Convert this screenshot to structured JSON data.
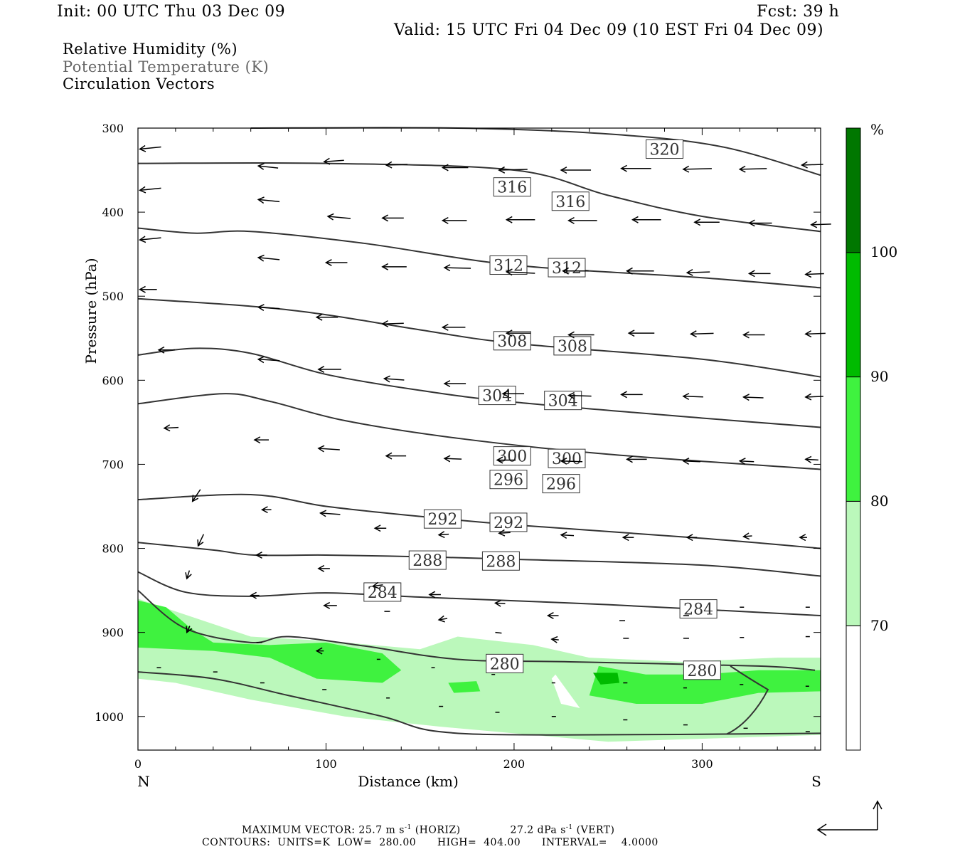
{
  "header": {
    "init": "Init: 00 UTC Thu 03 Dec 09",
    "fcst": "Fcst:   39 h",
    "valid": "Valid: 15 UTC Fri 04 Dec 09 (10 EST Fri 04 Dec 09)"
  },
  "fields": [
    {
      "label": "Relative Humidity (%)",
      "color": "#000000"
    },
    {
      "label": "Potential Temperature (K)",
      "color": "#666666"
    },
    {
      "label": "Circulation Vectors",
      "color": "#000000"
    }
  ],
  "chart_data": {
    "type": "cross-section",
    "xlabel": "Distance (km)",
    "ylabel": "Pressure (hPa)",
    "xlim": [
      0,
      363
    ],
    "ylim": [
      300,
      1040
    ],
    "y_scale": "linear, inverted",
    "x_ticks": [
      0,
      100,
      200,
      300
    ],
    "y_ticks": [
      300,
      400,
      500,
      600,
      700,
      800,
      900,
      1000
    ],
    "left_end_label": "N",
    "right_end_label": "S",
    "theta_contours": [
      {
        "level": 320,
        "points": [
          [
            60,
            300
          ],
          [
            170,
            300
          ],
          [
            250,
            307
          ],
          [
            310,
            322
          ],
          [
            363,
            356
          ]
        ],
        "labels": [
          [
            280,
            325
          ]
        ]
      },
      {
        "level": 316,
        "points": [
          [
            0,
            342
          ],
          [
            100,
            342
          ],
          [
            200,
            350
          ],
          [
            250,
            380
          ],
          [
            300,
            405
          ],
          [
            363,
            423
          ]
        ],
        "labels": [
          [
            199,
            370
          ],
          [
            230,
            387
          ]
        ]
      },
      {
        "level": 312,
        "points": [
          [
            0,
            419
          ],
          [
            30,
            425
          ],
          [
            60,
            423
          ],
          [
            120,
            437
          ],
          [
            200,
            463
          ],
          [
            300,
            478
          ],
          [
            363,
            490
          ]
        ],
        "labels": [
          [
            197,
            463
          ],
          [
            228,
            466
          ]
        ]
      },
      {
        "level": 308,
        "points": [
          [
            0,
            503
          ],
          [
            60,
            512
          ],
          [
            100,
            522
          ],
          [
            150,
            540
          ],
          [
            200,
            556
          ],
          [
            300,
            575
          ],
          [
            363,
            596
          ]
        ],
        "labels": [
          [
            199,
            553
          ],
          [
            231,
            559
          ]
        ]
      },
      {
        "level": 304,
        "points": [
          [
            0,
            570
          ],
          [
            30,
            562
          ],
          [
            60,
            568
          ],
          [
            100,
            593
          ],
          [
            150,
            612
          ],
          [
            200,
            626
          ],
          [
            300,
            645
          ],
          [
            363,
            656
          ]
        ],
        "labels": [
          [
            191,
            618
          ],
          [
            226,
            624
          ]
        ]
      },
      {
        "level": 300,
        "points": [
          [
            0,
            628
          ],
          [
            45,
            616
          ],
          [
            70,
            625
          ],
          [
            110,
            648
          ],
          [
            170,
            669
          ],
          [
            250,
            688
          ],
          [
            363,
            706
          ]
        ],
        "labels": [
          [
            199,
            690
          ],
          [
            228,
            693
          ]
        ]
      },
      {
        "level": 296,
        "points": [
          [
            0,
            742
          ],
          [
            60,
            736
          ],
          [
            100,
            750
          ],
          [
            150,
            762
          ],
          [
            200,
            772
          ],
          [
            300,
            788
          ],
          [
            363,
            800
          ]
        ],
        "labels": [
          [
            197,
            718
          ],
          [
            225,
            723
          ]
        ]
      },
      {
        "level": 292,
        "points": [
          [
            0,
            793
          ],
          [
            40,
            802
          ],
          [
            62,
            808
          ],
          [
            100,
            808
          ],
          [
            150,
            810
          ],
          [
            200,
            813
          ],
          [
            300,
            820
          ],
          [
            363,
            833
          ]
        ],
        "labels": [
          [
            162,
            765
          ],
          [
            197,
            769
          ]
        ]
      },
      {
        "level": 288,
        "points": [
          [
            0,
            828
          ],
          [
            25,
            852
          ],
          [
            60,
            857
          ],
          [
            100,
            853
          ],
          [
            150,
            858
          ],
          [
            250,
            867
          ],
          [
            363,
            880
          ]
        ],
        "labels": [
          [
            154,
            814
          ],
          [
            193,
            815
          ]
        ]
      },
      {
        "level": 284,
        "points": [
          [
            0,
            850
          ],
          [
            25,
            895
          ],
          [
            60,
            912
          ],
          [
            80,
            905
          ],
          [
            120,
            916
          ],
          [
            170,
            932
          ],
          [
            230,
            935
          ],
          [
            330,
            940
          ],
          [
            360,
            945
          ]
        ],
        "labels": [
          [
            130,
            852
          ],
          [
            298,
            872
          ]
        ]
      },
      {
        "level": 280,
        "points": [
          [
            0,
            947
          ],
          [
            40,
            955
          ],
          [
            80,
            975
          ],
          [
            130,
            1000
          ],
          [
            160,
            1018
          ],
          [
            220,
            1022
          ],
          [
            363,
            1020
          ]
        ],
        "labels": [
          [
            195,
            937
          ],
          [
            300,
            945
          ]
        ]
      }
    ],
    "rh_levels": [
      70,
      80,
      90,
      100
    ],
    "rh_colors": [
      "#ffffff",
      "#bbf8bb",
      "#3ff23f",
      "#00bb00",
      "#007700"
    ],
    "colorbar_unit": "%",
    "circulation_vectors": [
      [
        1,
        325,
        30,
        3
      ],
      [
        64,
        345,
        28,
        -3
      ],
      [
        99,
        340,
        28,
        2
      ],
      [
        132,
        344,
        30,
        1
      ],
      [
        162,
        347,
        36,
        0
      ],
      [
        192,
        350,
        40,
        1
      ],
      [
        225,
        350,
        42,
        0
      ],
      [
        257,
        348,
        42,
        0
      ],
      [
        290,
        349,
        40,
        1
      ],
      [
        320,
        349,
        38,
        1
      ],
      [
        353,
        344,
        30,
        1
      ],
      [
        1,
        374,
        30,
        3
      ],
      [
        64,
        385,
        30,
        -3
      ],
      [
        101,
        405,
        32,
        -3
      ],
      [
        130,
        407,
        30,
        0
      ],
      [
        162,
        410,
        34,
        0
      ],
      [
        196,
        409,
        40,
        0
      ],
      [
        229,
        410,
        40,
        0
      ],
      [
        263,
        409,
        40,
        0
      ],
      [
        296,
        412,
        35,
        0
      ],
      [
        325,
        413,
        32,
        0
      ],
      [
        358,
        415,
        28,
        1
      ],
      [
        1,
        433,
        30,
        3
      ],
      [
        64,
        454,
        30,
        -3
      ],
      [
        100,
        460,
        30,
        0
      ],
      [
        130,
        465,
        34,
        0
      ],
      [
        163,
        466,
        37,
        -1
      ],
      [
        196,
        471,
        40,
        -2
      ],
      [
        226,
        470,
        36,
        0
      ],
      [
        260,
        470,
        38,
        0
      ],
      [
        292,
        472,
        32,
        1
      ],
      [
        325,
        473,
        30,
        0
      ],
      [
        355,
        474,
        26,
        1
      ],
      [
        1,
        492,
        24,
        0
      ],
      [
        64,
        513,
        30,
        -2
      ],
      [
        95,
        525,
        30,
        0
      ],
      [
        130,
        533,
        30,
        1
      ],
      [
        162,
        537,
        32,
        0
      ],
      [
        196,
        544,
        34,
        0
      ],
      [
        229,
        546,
        36,
        0
      ],
      [
        261,
        544,
        36,
        0
      ],
      [
        294,
        545,
        32,
        1
      ],
      [
        322,
        546,
        30,
        0
      ],
      [
        355,
        545,
        28,
        1
      ],
      [
        11,
        564,
        23,
        0
      ],
      [
        64,
        575,
        30,
        -2
      ],
      [
        96,
        587,
        32,
        0
      ],
      [
        131,
        598,
        28,
        -2
      ],
      [
        163,
        604,
        30,
        0
      ],
      [
        194,
        616,
        30,
        0
      ],
      [
        229,
        618,
        32,
        -1
      ],
      [
        257,
        617,
        30,
        0
      ],
      [
        290,
        619,
        28,
        -1
      ],
      [
        322,
        620,
        28,
        -1
      ],
      [
        355,
        620,
        25,
        1
      ],
      [
        14,
        657,
        20,
        1
      ],
      [
        62,
        671,
        20,
        0
      ],
      [
        96,
        681,
        30,
        -2
      ],
      [
        132,
        690,
        28,
        0
      ],
      [
        163,
        693,
        24,
        -1
      ],
      [
        191,
        695,
        26,
        0
      ],
      [
        225,
        696,
        30,
        -1
      ],
      [
        260,
        694,
        28,
        0
      ],
      [
        290,
        696,
        24,
        -1
      ],
      [
        320,
        696,
        20,
        -1
      ],
      [
        355,
        694,
        18,
        -1
      ],
      [
        29,
        744,
        20,
        30
      ],
      [
        66,
        754,
        13,
        0
      ],
      [
        97,
        758,
        28,
        -2
      ],
      [
        126,
        776,
        16,
        0
      ],
      [
        160,
        784,
        14,
        1
      ],
      [
        192,
        782,
        16,
        1
      ],
      [
        225,
        784,
        18,
        -1
      ],
      [
        258,
        787,
        15,
        0
      ],
      [
        292,
        787,
        14,
        0
      ],
      [
        322,
        786,
        12,
        1
      ],
      [
        352,
        787,
        10,
        0
      ],
      [
        32,
        797,
        18,
        38
      ],
      [
        63,
        808,
        15,
        0
      ],
      [
        96,
        824,
        16,
        0
      ],
      [
        125,
        845,
        14,
        2
      ],
      [
        155,
        855,
        16,
        0
      ],
      [
        190,
        865,
        14,
        -1
      ],
      [
        218,
        880,
        15,
        0
      ],
      [
        256,
        886,
        8,
        0
      ],
      [
        290,
        880,
        8,
        0
      ],
      [
        320,
        870,
        6,
        0
      ],
      [
        355,
        870,
        6,
        0
      ],
      [
        26,
        836,
        12,
        38
      ],
      [
        60,
        856,
        12,
        0
      ],
      [
        99,
        868,
        18,
        0
      ],
      [
        131,
        875,
        8,
        0
      ],
      [
        160,
        885,
        12,
        2
      ],
      [
        190,
        900,
        9,
        -1
      ],
      [
        220,
        908,
        10,
        -1
      ],
      [
        258,
        907,
        8,
        0
      ],
      [
        290,
        907,
        8,
        0
      ],
      [
        320,
        906,
        6,
        0
      ],
      [
        355,
        905,
        6,
        0
      ],
      [
        26,
        900,
        10,
        22
      ],
      [
        63,
        912,
        8,
        0
      ],
      [
        95,
        922,
        10,
        0
      ],
      [
        127,
        932,
        5,
        0
      ],
      [
        156,
        942,
        5,
        0
      ],
      [
        188,
        950,
        5,
        0
      ],
      [
        220,
        960,
        5,
        0
      ],
      [
        258,
        960,
        6,
        0
      ],
      [
        290,
        966,
        5,
        0
      ],
      [
        320,
        962,
        5,
        0
      ],
      [
        355,
        964,
        5,
        0
      ],
      [
        10,
        942,
        6,
        0
      ],
      [
        40,
        947,
        6,
        0
      ],
      [
        65,
        960,
        6,
        0
      ],
      [
        98,
        968,
        6,
        0
      ],
      [
        132,
        978,
        5,
        0
      ],
      [
        160,
        988,
        6,
        0
      ],
      [
        190,
        995,
        6,
        0
      ],
      [
        220,
        1000,
        6,
        0
      ],
      [
        258,
        1004,
        6,
        0
      ],
      [
        290,
        1010,
        6,
        0
      ],
      [
        322,
        1014,
        6,
        0
      ],
      [
        355,
        1018,
        6,
        0
      ]
    ],
    "max_vector": "MAXIMUM VECTOR:  25.7 m s",
    "max_vector_h": "(HORIZ)",
    "max_vector_v": "27.2 dPa s",
    "max_vector_v_tail": "(VERT)",
    "exponent": "-1",
    "contour_line": "CONTOURS:  UNITS=K  LOW=  280.00      HIGH=  404.00      INTERVAL=    4.0000"
  }
}
